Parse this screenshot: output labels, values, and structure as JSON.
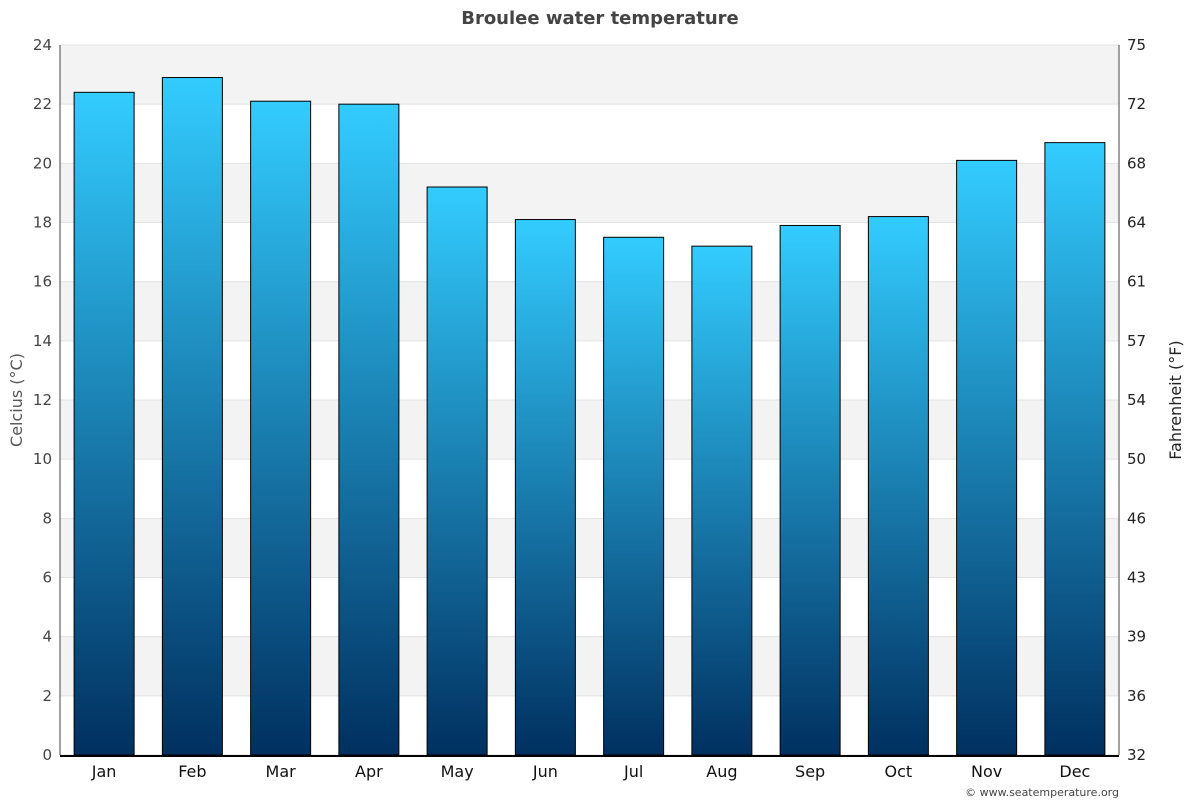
{
  "chart_data": {
    "type": "bar",
    "title": "Broulee water temperature",
    "ylabel": "Celcius (°C)",
    "ylabel_right": "Fahrenheit (°F)",
    "categories": [
      "Jan",
      "Feb",
      "Mar",
      "Apr",
      "May",
      "Jun",
      "Jul",
      "Aug",
      "Sep",
      "Oct",
      "Nov",
      "Dec"
    ],
    "values": [
      22.4,
      22.9,
      22.1,
      22.0,
      19.2,
      18.1,
      17.5,
      17.2,
      17.9,
      18.2,
      20.1,
      20.7
    ],
    "ylim": [
      0,
      24
    ],
    "yticks": [
      "0",
      "2",
      "4",
      "6",
      "8",
      "10",
      "12",
      "14",
      "16",
      "18",
      "20",
      "22",
      "24"
    ],
    "yticks_right": [
      "32",
      "36",
      "39",
      "43",
      "46",
      "50",
      "54",
      "57",
      "61",
      "64",
      "68",
      "72",
      "75"
    ],
    "grid": true,
    "colors": {
      "bar_top": "#33ccff",
      "bar_bottom": "#003060",
      "band": "#f3f3f3"
    }
  },
  "footer": {
    "credit": "© www.seatemperature.org"
  }
}
